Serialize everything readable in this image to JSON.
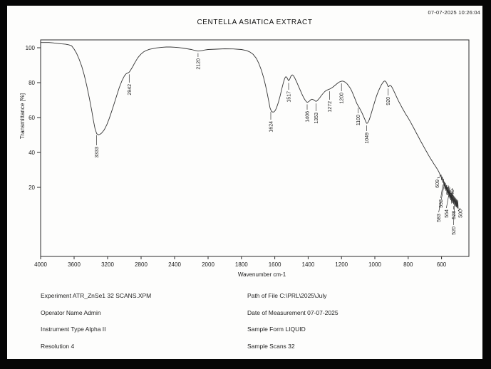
{
  "timestamp": "07-07-2025  10:26:04",
  "chart_data": {
    "type": "line",
    "title": "CENTELLA ASIATICA EXTRACT",
    "xlabel": "Wavenumber cm-1",
    "ylabel": "Transmittance [%]",
    "x_ticks": [
      4000,
      3600,
      3200,
      2800,
      2400,
      2000,
      1800,
      1600,
      1400,
      1200,
      1000,
      800,
      600
    ],
    "y_ticks": [
      100,
      80,
      60,
      40,
      20
    ],
    "x_axis_note": "split scale: 400 per division above 2000 cm-1, 200 per division below 2000 cm-1",
    "ylim_top": 104.5,
    "grid": false,
    "legend": "none",
    "peak_labels": [
      3333,
      2942,
      2120,
      1624,
      1517,
      1406,
      1353,
      1272,
      1200,
      1100,
      1049,
      920,
      609,
      592,
      583,
      548,
      540,
      554,
      528,
      500,
      520
    ],
    "peaks": [
      {
        "v": 3333,
        "ly": 150
      },
      {
        "v": 2942,
        "ly": 62
      },
      {
        "v": 2120,
        "ly": 26
      },
      {
        "v": 1624,
        "ly": 114
      },
      {
        "v": 1517,
        "ly": 72
      },
      {
        "v": 1406,
        "ly": 100
      },
      {
        "v": 1353,
        "ly": 102
      },
      {
        "v": 1272,
        "ly": 86
      },
      {
        "v": 1200,
        "ly": 74
      },
      {
        "v": 1100,
        "ly": 105
      },
      {
        "v": 1049,
        "ly": 130
      },
      {
        "v": 920,
        "ly": 80
      },
      {
        "v": 609,
        "ly": 196,
        "dx": -4
      },
      {
        "v": 592,
        "ly": 224,
        "dx": -3
      },
      {
        "v": 583,
        "ly": 244,
        "dx": -8
      },
      {
        "v": 548,
        "ly": 206,
        "dx": -3
      },
      {
        "v": 540,
        "ly": 210,
        "dx": 1
      },
      {
        "v": 554,
        "ly": 238,
        "dx": -4
      },
      {
        "v": 528,
        "ly": 240,
        "dx": 0
      },
      {
        "v": 500,
        "ly": 238,
        "dx": 3
      },
      {
        "v": 520,
        "ly": 262,
        "dx": -2
      }
    ],
    "points": [
      [
        4000,
        103
      ],
      [
        3950,
        103
      ],
      [
        3900,
        103
      ],
      [
        3850,
        102.8
      ],
      [
        3800,
        102.5
      ],
      [
        3750,
        102.2
      ],
      [
        3700,
        102
      ],
      [
        3660,
        101.6
      ],
      [
        3630,
        101.1
      ],
      [
        3600,
        99.2
      ],
      [
        3570,
        96.8
      ],
      [
        3540,
        93.5
      ],
      [
        3510,
        89.5
      ],
      [
        3480,
        84.5
      ],
      [
        3450,
        78.5
      ],
      [
        3420,
        71.5
      ],
      [
        3390,
        64
      ],
      [
        3370,
        58.5
      ],
      [
        3350,
        53.5
      ],
      [
        3330,
        50.8
      ],
      [
        3310,
        50.1
      ],
      [
        3290,
        50.4
      ],
      [
        3270,
        51.2
      ],
      [
        3240,
        53
      ],
      [
        3210,
        55.8
      ],
      [
        3180,
        59.5
      ],
      [
        3150,
        63.8
      ],
      [
        3120,
        68.2
      ],
      [
        3090,
        72.8
      ],
      [
        3060,
        77.2
      ],
      [
        3030,
        81
      ],
      [
        3000,
        83.8
      ],
      [
        2980,
        85
      ],
      [
        2965,
        85.5
      ],
      [
        2955,
        85.6
      ],
      [
        2942,
        86
      ],
      [
        2930,
        86.8
      ],
      [
        2915,
        88
      ],
      [
        2900,
        89.2
      ],
      [
        2880,
        91
      ],
      [
        2860,
        92.6
      ],
      [
        2840,
        94.2
      ],
      [
        2820,
        95.4
      ],
      [
        2800,
        96.4
      ],
      [
        2770,
        97.6
      ],
      [
        2740,
        98.4
      ],
      [
        2700,
        99.1
      ],
      [
        2660,
        99.5
      ],
      [
        2620,
        99.9
      ],
      [
        2580,
        100.1
      ],
      [
        2540,
        100.3
      ],
      [
        2500,
        100.4
      ],
      [
        2450,
        100.4
      ],
      [
        2400,
        100.3
      ],
      [
        2350,
        100.1
      ],
      [
        2300,
        99.8
      ],
      [
        2250,
        99.4
      ],
      [
        2200,
        99
      ],
      [
        2160,
        98.5
      ],
      [
        2130,
        98.2
      ],
      [
        2120,
        98.1
      ],
      [
        2100,
        98.2
      ],
      [
        2070,
        98.4
      ],
      [
        2040,
        98.7
      ],
      [
        2000,
        99
      ],
      [
        1950,
        99.2
      ],
      [
        1900,
        99.4
      ],
      [
        1850,
        99.3
      ],
      [
        1800,
        99
      ],
      [
        1770,
        98.4
      ],
      [
        1750,
        97.6
      ],
      [
        1730,
        96.2
      ],
      [
        1710,
        93.8
      ],
      [
        1695,
        90.8
      ],
      [
        1680,
        87
      ],
      [
        1668,
        83.2
      ],
      [
        1656,
        78.6
      ],
      [
        1645,
        73.6
      ],
      [
        1635,
        68.8
      ],
      [
        1628,
        65.4
      ],
      [
        1620,
        63.6
      ],
      [
        1612,
        63.1
      ],
      [
        1604,
        63.3
      ],
      [
        1596,
        64.2
      ],
      [
        1588,
        66
      ],
      [
        1578,
        68.8
      ],
      [
        1568,
        72.4
      ],
      [
        1558,
        76.4
      ],
      [
        1548,
        80.2
      ],
      [
        1540,
        82.6
      ],
      [
        1534,
        83.4
      ],
      [
        1528,
        83.1
      ],
      [
        1522,
        81.9
      ],
      [
        1517,
        81.1
      ],
      [
        1511,
        81.9
      ],
      [
        1505,
        83.3
      ],
      [
        1499,
        84.3
      ],
      [
        1493,
        84.4
      ],
      [
        1486,
        83.7
      ],
      [
        1478,
        82.3
      ],
      [
        1468,
        80.2
      ],
      [
        1458,
        78
      ],
      [
        1448,
        75.8
      ],
      [
        1438,
        73.6
      ],
      [
        1428,
        71.6
      ],
      [
        1418,
        70
      ],
      [
        1410,
        69
      ],
      [
        1406,
        68.8
      ],
      [
        1400,
        68.9
      ],
      [
        1392,
        69.5
      ],
      [
        1384,
        70.2
      ],
      [
        1377,
        70.5
      ],
      [
        1370,
        70.3
      ],
      [
        1362,
        69.8
      ],
      [
        1356,
        69.4
      ],
      [
        1353,
        69.3
      ],
      [
        1348,
        69.5
      ],
      [
        1340,
        70.2
      ],
      [
        1330,
        71.4
      ],
      [
        1320,
        72.7
      ],
      [
        1310,
        73.9
      ],
      [
        1300,
        74.9
      ],
      [
        1290,
        75.6
      ],
      [
        1280,
        76
      ],
      [
        1272,
        76.3
      ],
      [
        1262,
        76.8
      ],
      [
        1252,
        77.4
      ],
      [
        1242,
        78.2
      ],
      [
        1232,
        79
      ],
      [
        1222,
        79.8
      ],
      [
        1212,
        80.4
      ],
      [
        1204,
        80.7
      ],
      [
        1196,
        80.9
      ],
      [
        1188,
        80.8
      ],
      [
        1178,
        80.3
      ],
      [
        1168,
        79.5
      ],
      [
        1158,
        78.3
      ],
      [
        1148,
        76.9
      ],
      [
        1138,
        75.1
      ],
      [
        1128,
        72.9
      ],
      [
        1118,
        70.5
      ],
      [
        1108,
        68.1
      ],
      [
        1100,
        66.7
      ],
      [
        1092,
        65.4
      ],
      [
        1084,
        64
      ],
      [
        1076,
        62.4
      ],
      [
        1068,
        60.7
      ],
      [
        1060,
        58.9
      ],
      [
        1053,
        57.3
      ],
      [
        1049,
        56.7
      ],
      [
        1045,
        56.8
      ],
      [
        1040,
        57.4
      ],
      [
        1033,
        58.9
      ],
      [
        1025,
        61.2
      ],
      [
        1017,
        63.8
      ],
      [
        1009,
        66.4
      ],
      [
        1001,
        69
      ],
      [
        993,
        71.4
      ],
      [
        985,
        73.6
      ],
      [
        977,
        75.5
      ],
      [
        969,
        77.2
      ],
      [
        961,
        78.7
      ],
      [
        953,
        79.9
      ],
      [
        946,
        80.7
      ],
      [
        940,
        81
      ],
      [
        934,
        80.6
      ],
      [
        928,
        79.6
      ],
      [
        923,
        78.3
      ],
      [
        919,
        77.7
      ],
      [
        914,
        78
      ],
      [
        909,
        78.4
      ],
      [
        904,
        78.3
      ],
      [
        898,
        77.5
      ],
      [
        891,
        76.2
      ],
      [
        883,
        74.6
      ],
      [
        875,
        72.9
      ],
      [
        867,
        71.3
      ],
      [
        859,
        69.7
      ],
      [
        851,
        68.2
      ],
      [
        841,
        66.4
      ],
      [
        831,
        64.7
      ],
      [
        821,
        63
      ],
      [
        811,
        61.4
      ],
      [
        801,
        59.9
      ],
      [
        789,
        57.9
      ],
      [
        777,
        55.8
      ],
      [
        765,
        53.7
      ],
      [
        753,
        51.5
      ],
      [
        741,
        49.4
      ],
      [
        729,
        47.2
      ],
      [
        717,
        45.1
      ],
      [
        706,
        43.2
      ],
      [
        696,
        41.5
      ],
      [
        686,
        39.8
      ],
      [
        676,
        38.1
      ],
      [
        666,
        36.5
      ],
      [
        656,
        35
      ],
      [
        646,
        33.5
      ],
      [
        637,
        32.2
      ],
      [
        629,
        31
      ],
      [
        622,
        29.9
      ],
      [
        616,
        28.8
      ],
      [
        611,
        27.8
      ],
      [
        607,
        26.2
      ],
      [
        603,
        27.2
      ],
      [
        599,
        24.2
      ],
      [
        596,
        26
      ],
      [
        592,
        22.8
      ],
      [
        589,
        24.8
      ],
      [
        586,
        21
      ],
      [
        583,
        23.2
      ],
      [
        580,
        19.2
      ],
      [
        577,
        22.4
      ],
      [
        574,
        18.2
      ],
      [
        571,
        21.2
      ],
      [
        568,
        16.8
      ],
      [
        565,
        20.2
      ],
      [
        562,
        15.8
      ],
      [
        559,
        19.2
      ],
      [
        556,
        14.8
      ],
      [
        554,
        18.2
      ],
      [
        551,
        13.8
      ],
      [
        548,
        17.6
      ],
      [
        545,
        12.8
      ],
      [
        542,
        16.8
      ],
      [
        540,
        12
      ],
      [
        537,
        16.2
      ],
      [
        534,
        11.2
      ],
      [
        531,
        15.4
      ],
      [
        528,
        10.5
      ],
      [
        525,
        14.8
      ],
      [
        522,
        9.8
      ],
      [
        520,
        14.2
      ],
      [
        517,
        9.2
      ],
      [
        514,
        13.6
      ],
      [
        511,
        8.8
      ],
      [
        509,
        13
      ],
      [
        506,
        8.2
      ],
      [
        503,
        12.4
      ],
      [
        500,
        7.8
      ]
    ]
  },
  "metadata": {
    "left": [
      "Experiment ATR_ZnSe1 32 SCANS.XPM",
      "Operator Name Admin",
      "Instrument Type Alpha II",
      "Resolution 4"
    ],
    "right": [
      "Path of File C:\\PRL\\2025\\July",
      "Date of Measurement 07-07-2025",
      "Sample Form LIQUID",
      "Sample Scans 32"
    ]
  }
}
